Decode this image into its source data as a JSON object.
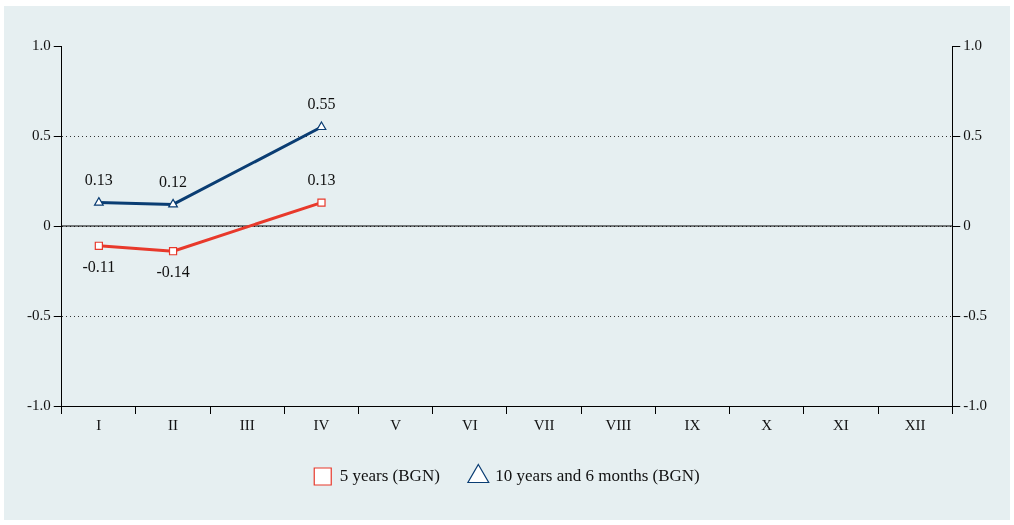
{
  "chart_data": {
    "type": "line",
    "categories": [
      "I",
      "II",
      "III",
      "IV",
      "V",
      "VI",
      "VII",
      "VIII",
      "IX",
      "X",
      "XI",
      "XII"
    ],
    "series": [
      {
        "name": "5 years (BGN)",
        "color": "#e8392b",
        "marker": "square",
        "values": [
          -0.11,
          -0.14,
          null,
          0.13,
          null,
          null,
          null,
          null,
          null,
          null,
          null,
          null
        ]
      },
      {
        "name": "10 years and 6 months (BGN)",
        "color": "#0a3d73",
        "marker": "triangle",
        "values": [
          0.13,
          0.12,
          null,
          0.55,
          null,
          null,
          null,
          null,
          null,
          null,
          null,
          null
        ]
      }
    ],
    "ylim": [
      -1,
      1
    ],
    "yticks": [
      {
        "value": -1,
        "label": "-1.0"
      },
      {
        "value": -0.5,
        "label": "-0.5"
      },
      0,
      {
        "value": 0.5,
        "label": "0.5"
      },
      {
        "value": 1,
        "label": "1.0"
      }
    ],
    "y2lim": [
      -1,
      1
    ],
    "y2ticks": [
      {
        "value": -1,
        "label": "-1.0"
      },
      {
        "value": -0.5,
        "label": "-0.5"
      },
      0,
      {
        "value": 0.5,
        "label": "0.5"
      },
      {
        "value": 1,
        "label": "1.0"
      }
    ],
    "ref_lines": [
      {
        "axis": "y",
        "value": 0
      }
    ],
    "grid": "y",
    "line_style": "solid",
    "data_labels": true,
    "legend": "bottom"
  }
}
